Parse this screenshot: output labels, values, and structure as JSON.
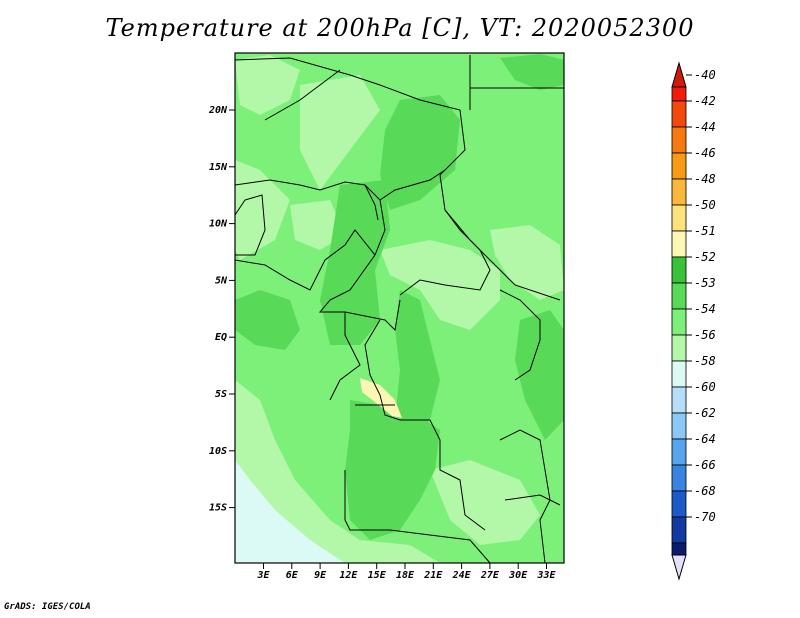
{
  "title": "Temperature at 200hPa [C], VT: 2020052300",
  "credit": "GrADS: IGES/COLA",
  "map": {
    "lat_labels": [
      "20N",
      "15N",
      "10N",
      "5N",
      "EQ",
      "5S",
      "10S",
      "15S"
    ],
    "lon_labels": [
      "3E",
      "6E",
      "9E",
      "12E",
      "15E",
      "18E",
      "21E",
      "24E",
      "27E",
      "30E",
      "33E"
    ]
  },
  "colorbar": {
    "levels": [
      {
        "label": "-40",
        "color": "#f01b0a"
      },
      {
        "label": "-42",
        "color": "#f24a0d"
      },
      {
        "label": "-44",
        "color": "#f57811"
      },
      {
        "label": "-46",
        "color": "#f79b16"
      },
      {
        "label": "-48",
        "color": "#fab83a"
      },
      {
        "label": "-50",
        "color": "#fde27c"
      },
      {
        "label": "-51",
        "color": "#fdf7b6"
      },
      {
        "label": "-52",
        "color": "#37c237"
      },
      {
        "label": "-53",
        "color": "#58d958"
      },
      {
        "label": "-54",
        "color": "#7df07a"
      },
      {
        "label": "-56",
        "color": "#b3f7a8"
      },
      {
        "label": "-58",
        "color": "#dbfaf6"
      },
      {
        "label": "-60",
        "color": "#b7def9"
      },
      {
        "label": "-62",
        "color": "#8cc8f5"
      },
      {
        "label": "-64",
        "color": "#58a4ec"
      },
      {
        "label": "-66",
        "color": "#3a84e0"
      },
      {
        "label": "-68",
        "color": "#1d5ac8"
      },
      {
        "label": "-70",
        "color": "#123aa0"
      }
    ],
    "top_cap_color": "#d01a0a",
    "bottom_cap_color": "#e6e1fa",
    "bottom_box_color": "#0d1b6e"
  }
}
